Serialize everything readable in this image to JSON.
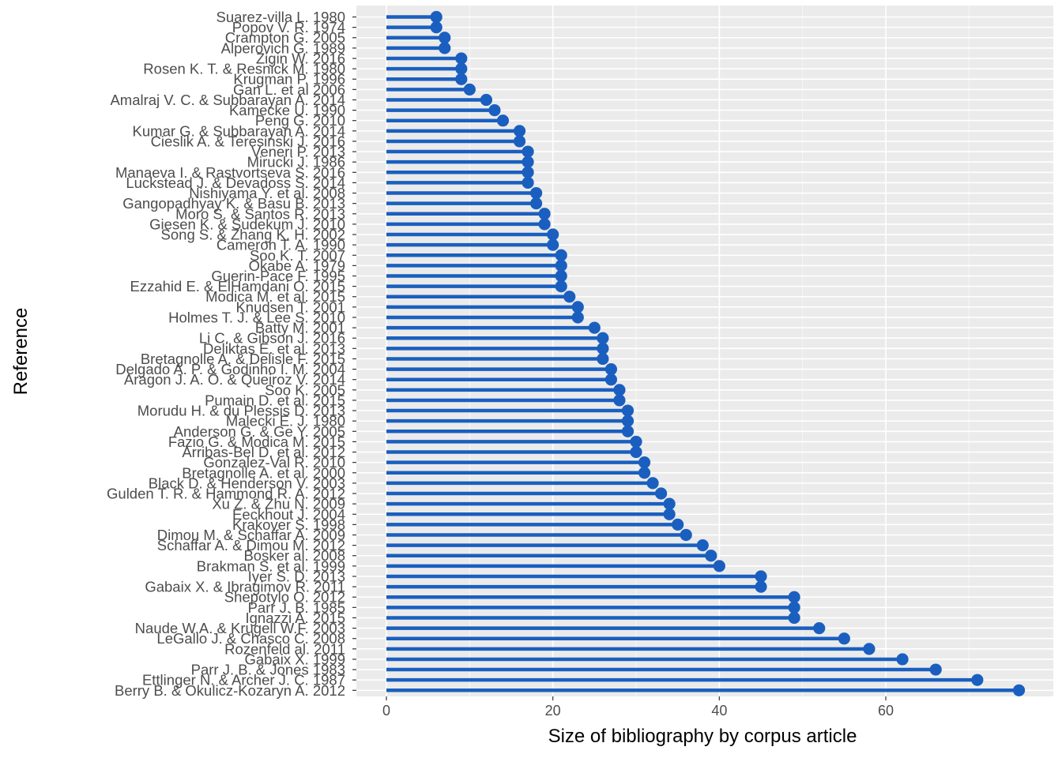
{
  "chart_data": {
    "type": "lollipop",
    "orientation": "horizontal",
    "xlabel": "Size of bibliography by corpus article",
    "ylabel": "Reference",
    "xlim": [
      -3.6,
      79.5
    ],
    "x_ticks": [
      0,
      20,
      40,
      60
    ],
    "grid": true,
    "color": "#1a5fbf",
    "panel_background": "#ebebeb",
    "categories": [
      "Suarez-villa L. 1980",
      "Popov V. R. 1974",
      "Crampton G. 2005",
      "Alperovich G. 1989",
      "Zigin W. 2016",
      "Rosen K. T. & Resnick M. 1980",
      "Krugman P. 1996",
      "Gan L. et al 2006",
      "Amalraj V. C. & Subbarayan A. 2014",
      "Kamecke U. 1990",
      "Peng G. 2010",
      "Kumar G. & Subbarayan A. 2014",
      "Cieslik A. & Teresinski J. 2016",
      "Veneri P. 2013",
      "Mirucki J. 1986",
      "Manaeva I. & Rastvortseva S. 2016",
      "Luckstead J. & Devadoss S. 2014",
      "Nishiyama Y. et al. 2008",
      "Gangopadhyay K. & Basu B. 2013",
      "Moro S. & Santos R. 2013",
      "Giesen K. & Sudekum J. 2010",
      "Song S. & Zhang K. H. 2002",
      "Cameron T. A. 1990",
      "Soo K. T. 2007",
      "Okabe A. 1979",
      "Guerin-Pace F. 1995",
      "Ezzahid E. & ElHamdani O. 2015",
      "Modica M. et al. 2015",
      "Knudsen T. 2001",
      "Holmes T. J. & Lee S. 2010",
      "Batty M. 2001",
      "Li C. & Gibson J. 2016",
      "Deliktas E. et al. 2013",
      "Bretagnolle A. & Delisle F. 2015",
      "Delgado A. P. & Godinho I. M. 2004",
      "Aragon J. A. O. & Queiroz V. 2014",
      "Soo K. 2005",
      "Pumain D. et al. 2015",
      "Morudu H. & du Plessis D. 2013",
      "Malecki E. J. 1980",
      "Anderson G. & Ge Y. 2005",
      "Fazio G. & Modica M. 2015",
      "Arribas-Bel D. et al. 2012",
      "Gonzalez-Val R. 2010",
      "Bretagnolle A. et al. 2000",
      "Black D. & Henderson V. 2003",
      "Gulden T. R. & Hammond R. A. 2012",
      "Xu Z. & Zhu N. 2009",
      "Eeckhout J. 2004",
      "Krakover S. 1998",
      "Dimou M. & Schaffar A. 2009",
      "Schaffar A. & Dimou M. 2012",
      "Bosker al. 2008",
      "Brakman S. et al. 1999",
      "Iyer S. D. 2013",
      "Gabaix X. & Ibragimov R. 2011",
      "Shepotylo O. 2012",
      "Parr J. B. 1985",
      "Ignazzi A. 2015",
      "Naude W.A. & Krugell W.F. 2003",
      "LeGallo J. & Chasco C. 2008",
      "Rozenfeld al. 2011",
      "Gabaix X. 1999",
      "Parr J. B. & Jones 1983",
      "Ettlinger N. & Archer J. C. 1987",
      "Berry B. &  Okulicz-Kozaryn A. 2012"
    ],
    "values": [
      6,
      6,
      7,
      7,
      9,
      9,
      9,
      10,
      12,
      13,
      14,
      16,
      16,
      17,
      17,
      17,
      17,
      18,
      18,
      19,
      19,
      20,
      20,
      21,
      21,
      21,
      21,
      22,
      23,
      23,
      25,
      26,
      26,
      26,
      27,
      27,
      28,
      28,
      29,
      29,
      29,
      30,
      30,
      31,
      31,
      32,
      33,
      34,
      34,
      35,
      36,
      38,
      39,
      40,
      45,
      45,
      49,
      49,
      49,
      52,
      55,
      58,
      62,
      66,
      71,
      76
    ]
  }
}
